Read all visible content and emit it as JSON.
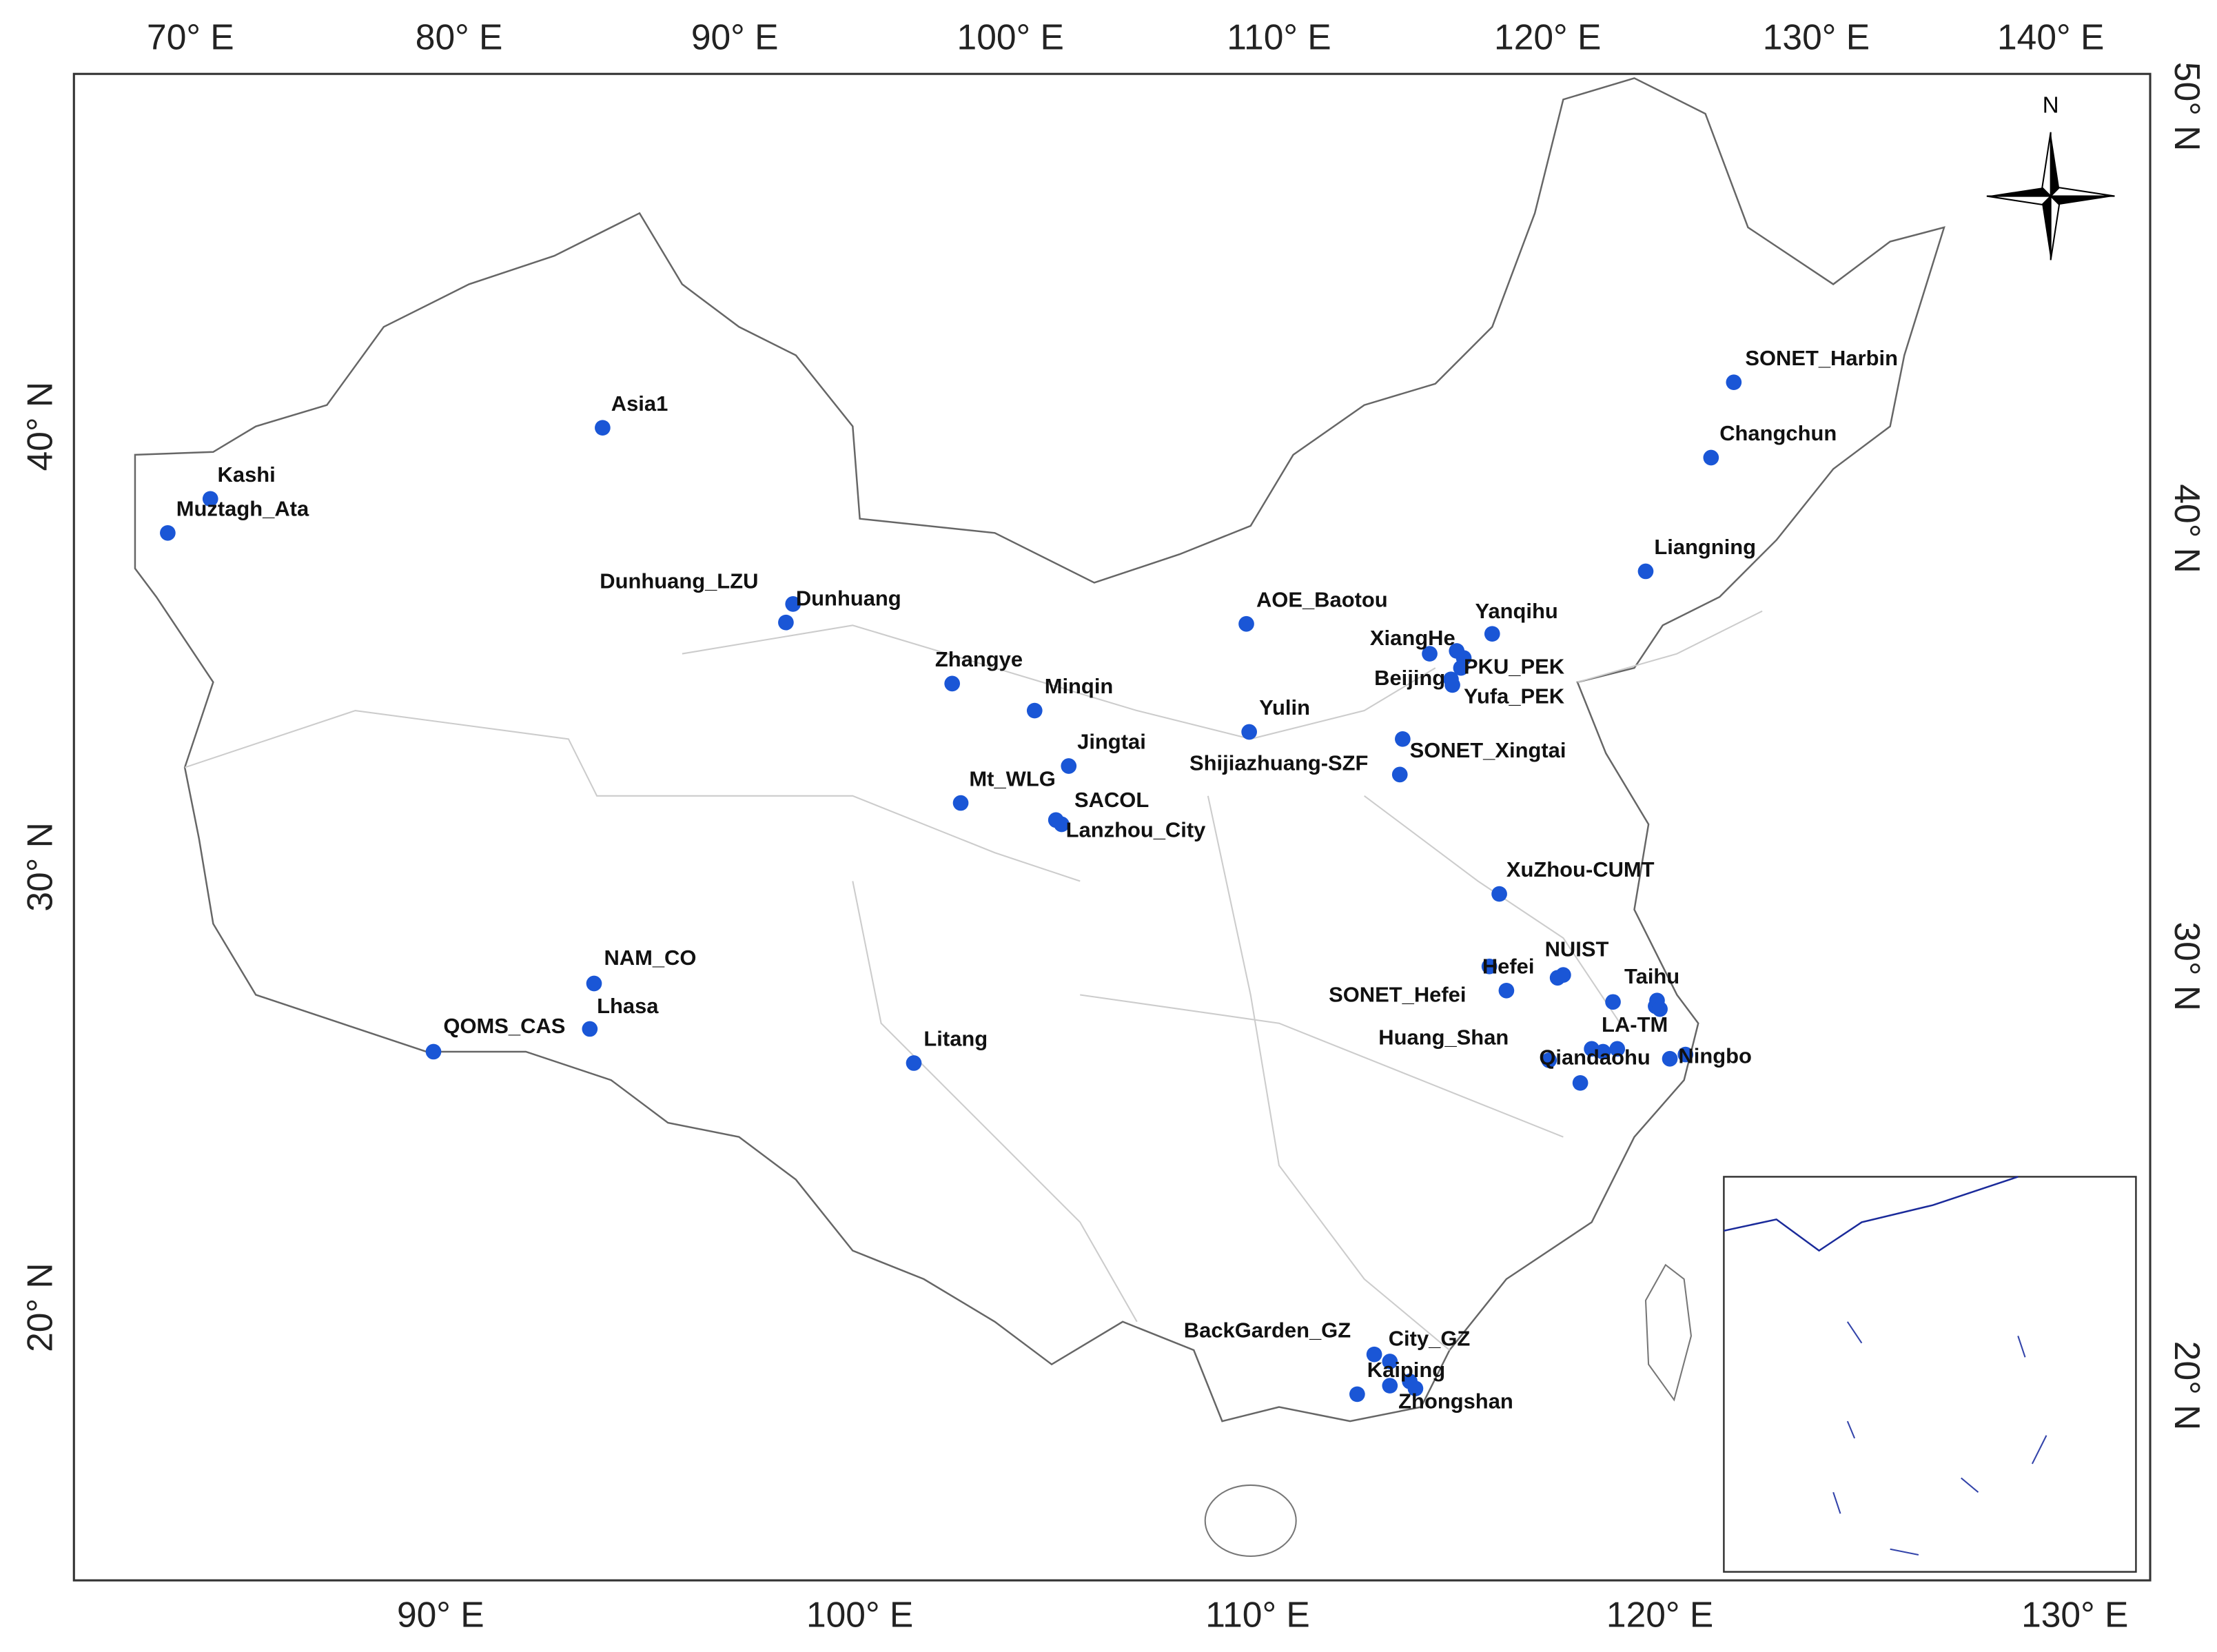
{
  "map": {
    "compass": "N",
    "top_axis_labels": [
      "70° E",
      "80° E",
      "90° E",
      "100° E",
      "110° E",
      "120° E",
      "130° E",
      "140° E"
    ],
    "bottom_axis_labels": [
      "90° E",
      "100° E",
      "110° E",
      "120° E",
      "130° E"
    ],
    "left_axis_labels": [
      "40° N",
      "30° N",
      "20° N"
    ],
    "right_axis_labels": [
      "50° N",
      "40° N",
      "30° N",
      "20° N"
    ],
    "stations": [
      "Asia1",
      "Kashi",
      "Muztagh_Ata",
      "Dunhuang_LZU",
      "Dunhuang",
      "Zhangye",
      "Minqin",
      "Jingtai",
      "Mt_WLG",
      "SACOL",
      "Lanzhou_City",
      "AOE_Baotou",
      "Yulin",
      "Shijiazhuang-SZF",
      "SONET_Xingtai",
      "XiangHe",
      "Yanqihu",
      "PKU_PEK",
      "Beijing",
      "Yufa_PEK",
      "SONET_Harbin",
      "Changchun",
      "Liangning",
      "XuZhou-CUMT",
      "NUIST",
      "Hefei",
      "SONET_Hefei",
      "Taihu",
      "LA-TM",
      "Huang_Shan",
      "Qiandaohu",
      "Ningbo",
      "NAM_CO",
      "Lhasa",
      "QOMS_CAS",
      "Litang",
      "BackGarden_GZ",
      "City_GZ",
      "Kaiping",
      "Zhongshan"
    ]
  }
}
